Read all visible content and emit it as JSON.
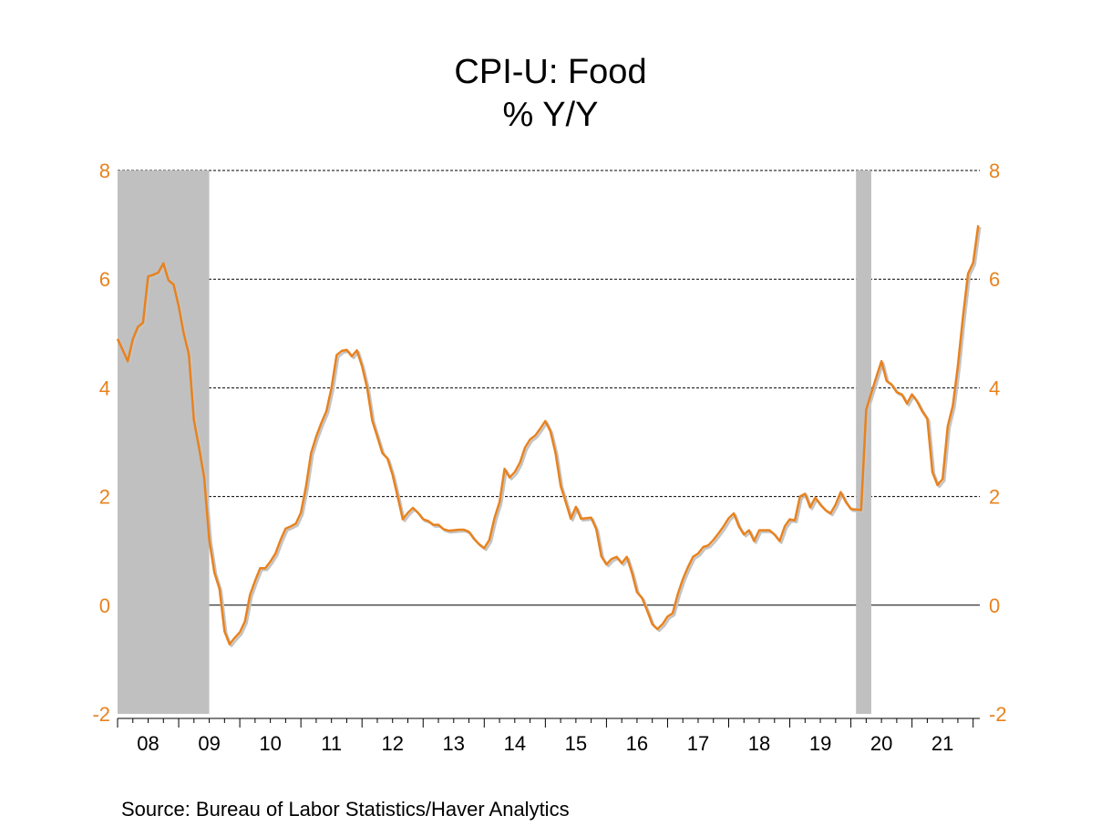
{
  "chart_data": {
    "type": "line",
    "title": "CPI-U: Food",
    "subtitle": "% Y/Y",
    "source": "Source:  Bureau of Labor Statistics/Haver Analytics",
    "xlabel": "",
    "ylabel": "",
    "ylim": [
      -2,
      8
    ],
    "yticks": [
      -2,
      0,
      2,
      4,
      6,
      8
    ],
    "y_axes": "left and right (mirrored)",
    "xticks": [
      "08",
      "09",
      "10",
      "11",
      "12",
      "13",
      "14",
      "15",
      "16",
      "17",
      "18",
      "19",
      "20",
      "21"
    ],
    "xlim": [
      "2008-01",
      "2022-02"
    ],
    "grid": "horizontal dashed at 2, 4, 6, 8; solid line at 0",
    "legend": "none",
    "recession_shading": [
      {
        "start": "2008-01",
        "end": "2009-06"
      },
      {
        "start": "2020-02",
        "end": "2020-04"
      }
    ],
    "colors": {
      "line": "#e8821e",
      "shadow": "#c4c4c4",
      "tick_labels": "#e8821e",
      "shading": "#c0c0c0"
    },
    "series": [
      {
        "start": "2008-01",
        "frequency": "monthly",
        "values": [
          4.9,
          4.7,
          4.49,
          4.9,
          5.12,
          5.2,
          6.05,
          6.08,
          6.12,
          6.29,
          5.98,
          5.9,
          5.5,
          5.0,
          4.62,
          3.4,
          2.9,
          2.35,
          1.2,
          0.6,
          0.3,
          -0.48,
          -0.72,
          -0.6,
          -0.5,
          -0.3,
          0.19,
          0.45,
          0.68,
          0.68,
          0.8,
          0.95,
          1.2,
          1.41,
          1.45,
          1.5,
          1.7,
          2.18,
          2.8,
          3.1,
          3.35,
          3.57,
          4.0,
          4.6,
          4.68,
          4.7,
          4.58,
          4.69,
          4.4,
          4.0,
          3.4,
          3.1,
          2.8,
          2.7,
          2.4,
          2.0,
          1.58,
          1.7,
          1.79,
          1.7,
          1.58,
          1.55,
          1.48,
          1.48,
          1.4,
          1.37,
          1.38,
          1.39,
          1.39,
          1.35,
          1.22,
          1.12,
          1.05,
          1.2,
          1.6,
          1.9,
          2.51,
          2.35,
          2.45,
          2.62,
          2.9,
          3.05,
          3.12,
          3.25,
          3.39,
          3.2,
          2.8,
          2.2,
          1.9,
          1.59,
          1.81,
          1.59,
          1.6,
          1.61,
          1.4,
          0.9,
          0.75,
          0.85,
          0.89,
          0.77,
          0.89,
          0.6,
          0.24,
          0.13,
          -0.1,
          -0.35,
          -0.44,
          -0.35,
          -0.21,
          -0.15,
          0.2,
          0.48,
          0.7,
          0.89,
          0.95,
          1.07,
          1.1,
          1.2,
          1.32,
          1.45,
          1.6,
          1.69,
          1.45,
          1.3,
          1.38,
          1.18,
          1.38,
          1.38,
          1.38,
          1.3,
          1.18,
          1.45,
          1.58,
          1.56,
          2.0,
          2.05,
          1.8,
          1.98,
          1.85,
          1.75,
          1.69,
          1.85,
          2.08,
          1.9,
          1.77,
          1.76,
          1.75,
          3.6,
          3.9,
          4.2,
          4.49,
          4.13,
          4.06,
          3.92,
          3.88,
          3.71,
          3.88,
          3.75,
          3.57,
          3.43,
          2.45,
          2.21,
          2.32,
          3.29,
          3.67,
          4.4,
          5.3,
          6.1,
          6.3,
          6.99
        ]
      }
    ]
  }
}
